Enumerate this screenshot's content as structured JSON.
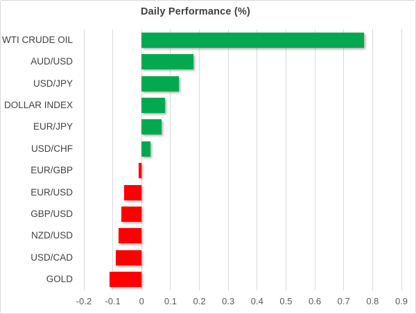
{
  "chart_data": {
    "type": "bar",
    "orientation": "horizontal",
    "title": "Daily Performance (%)",
    "categories": [
      "WTI CRUDE OIL",
      "AUD/USD",
      "USD/JPY",
      "DOLLAR INDEX",
      "EUR/JPY",
      "USD/CHF",
      "EUR/GBP",
      "EUR/USD",
      "GBP/USD",
      "NZD/USD",
      "USD/CAD",
      "GOLD"
    ],
    "values": [
      0.77,
      0.18,
      0.13,
      0.08,
      0.07,
      0.03,
      -0.01,
      -0.06,
      -0.07,
      -0.08,
      -0.09,
      -0.11
    ],
    "x_tick_labels": [
      "-0.2",
      "-0.1",
      "0",
      "0.1",
      "0.2",
      "0.3",
      "0.4",
      "0.5",
      "0.6",
      "0.7",
      "0.8",
      "0.9"
    ],
    "x_tick_values": [
      -0.2,
      -0.1,
      0,
      0.1,
      0.2,
      0.3,
      0.4,
      0.5,
      0.6,
      0.7,
      0.8,
      0.9
    ],
    "xlim": [
      -0.2,
      0.9
    ],
    "grid": "vertical-only",
    "legend": "none",
    "colors": {
      "positive_bar": "#04A94F",
      "negative_bar": "#FE0000",
      "gridline": "#D9D9D9",
      "title_text": "#3F3F3F",
      "category_text": "#3F3F3F",
      "tick_text": "#595959"
    }
  }
}
